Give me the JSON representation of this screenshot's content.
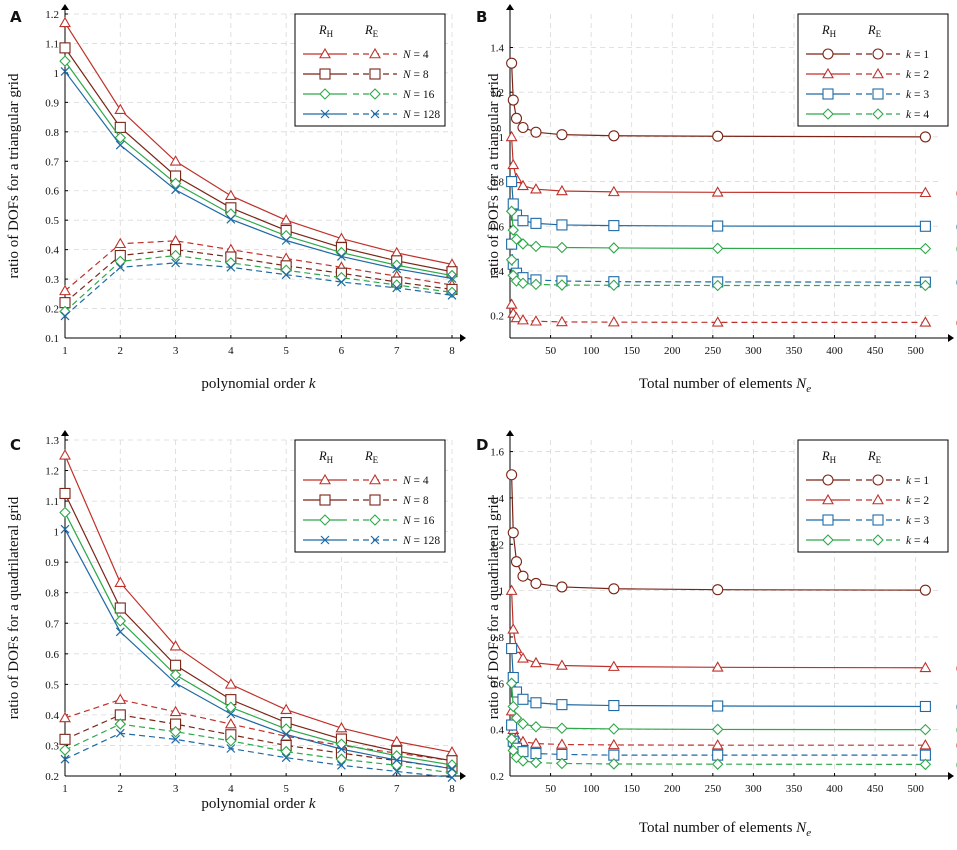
{
  "colors": {
    "red": "#c0312b",
    "darkred": "#7a2517",
    "green": "#2ea84a",
    "blue": "#1f6aa5",
    "grid": "#d9d9d9"
  },
  "legend_headers": {
    "h": "R",
    "h_sub": "H",
    "e": "R",
    "e_sub": "E"
  },
  "chart_data": [
    {
      "panel": "A",
      "type": "line",
      "ylabel": "ratio of DOFs for a triangular grid",
      "xlabel": "polynomial order k",
      "xlim": [
        1,
        8
      ],
      "ylim": [
        0.1,
        1.2
      ],
      "xticks": [
        "1",
        "2",
        "3",
        "4",
        "5",
        "6",
        "7",
        "8"
      ],
      "yticks": [
        "0.1",
        "0.2",
        "0.3",
        "0.4",
        "0.5",
        "0.6",
        "0.7",
        "0.8",
        "0.9",
        "1",
        "1.1",
        "1.2"
      ],
      "x": [
        1,
        2,
        3,
        4,
        5,
        6,
        7,
        8
      ],
      "legend_position": "top-right",
      "series": [
        {
          "name": "N = 4",
          "color": "red",
          "marker": "triangle",
          "RH": [
            1.17,
            0.875,
            0.7,
            0.583,
            0.5,
            0.4375,
            0.389,
            0.35
          ],
          "RE": [
            0.26,
            0.42,
            0.43,
            0.4,
            0.37,
            0.34,
            0.31,
            0.28
          ]
        },
        {
          "name": "N = 8",
          "color": "darkred",
          "marker": "square",
          "RH": [
            1.085,
            0.815,
            0.65,
            0.542,
            0.465,
            0.407,
            0.362,
            0.325
          ],
          "RE": [
            0.22,
            0.38,
            0.4,
            0.375,
            0.345,
            0.32,
            0.29,
            0.265
          ]
        },
        {
          "name": "N = 16",
          "color": "green",
          "marker": "diamond",
          "RH": [
            1.04,
            0.78,
            0.625,
            0.521,
            0.447,
            0.39,
            0.347,
            0.312
          ],
          "RE": [
            0.19,
            0.36,
            0.38,
            0.355,
            0.33,
            0.305,
            0.28,
            0.255
          ]
        },
        {
          "name": "N = 128",
          "color": "blue",
          "marker": "x",
          "RH": [
            1.005,
            0.755,
            0.603,
            0.503,
            0.431,
            0.377,
            0.335,
            0.302
          ],
          "RE": [
            0.175,
            0.34,
            0.355,
            0.34,
            0.315,
            0.29,
            0.27,
            0.245
          ]
        }
      ]
    },
    {
      "panel": "B",
      "type": "line",
      "ylabel": "ratio of DOFs for a triangular grid",
      "xlabel": "Total number of elements N",
      "xlabel_sub": "e",
      "xlim": [
        0,
        530
      ],
      "ylim": [
        0.1,
        1.55
      ],
      "xticks": [
        "50",
        "100",
        "150",
        "200",
        "250",
        "300",
        "350",
        "400",
        "450",
        "500"
      ],
      "yticks": [
        "0.2",
        "0.4",
        "0.6",
        "0.8",
        "1",
        "1.2",
        "1.4"
      ],
      "x": [
        2,
        4,
        8,
        16,
        32,
        64,
        128,
        256,
        512
      ],
      "legend_position": "top-right",
      "series": [
        {
          "name": "k = 1",
          "color": "darkred",
          "marker": "circle",
          "RH": [
            1.33,
            1.165,
            1.083,
            1.042,
            1.021,
            1.01,
            1.005,
            1.003,
            1.0
          ],
          "RE": null,
          "asymptote": "1.00"
        },
        {
          "name": "k = 2",
          "color": "red",
          "marker": "triangle",
          "RH": [
            1.0,
            0.875,
            0.8125,
            0.781,
            0.766,
            0.758,
            0.754,
            0.752,
            0.75
          ],
          "RE": [
            0.25,
            0.21,
            0.19,
            0.18,
            0.175,
            0.172,
            0.171,
            0.17,
            0.17
          ],
          "asymptote": "0.75",
          "re_label": "0.17"
        },
        {
          "name": "k = 3",
          "color": "blue",
          "marker": "square",
          "RH": [
            0.8,
            0.7,
            0.65,
            0.625,
            0.613,
            0.606,
            0.603,
            0.601,
            0.6
          ],
          "RE": [
            0.52,
            0.43,
            0.39,
            0.37,
            0.36,
            0.355,
            0.352,
            0.351,
            0.35
          ],
          "asymptote": "0.60",
          "re_label": "0.35"
        },
        {
          "name": "k = 4",
          "color": "green",
          "marker": "diamond",
          "RH": [
            0.667,
            0.583,
            0.542,
            0.521,
            0.51,
            0.505,
            0.503,
            0.501,
            0.5
          ],
          "RE": [
            0.45,
            0.38,
            0.355,
            0.345,
            0.34,
            0.337,
            0.336,
            0.335,
            0.335
          ],
          "asymptote": "0.50"
        }
      ]
    },
    {
      "panel": "C",
      "type": "line",
      "ylabel": "ratio of DOFs for a quadrilateral grid",
      "xlabel": "polynomial order k",
      "xlim": [
        1,
        8
      ],
      "ylim": [
        0.2,
        1.3
      ],
      "xticks": [
        "1",
        "2",
        "3",
        "4",
        "5",
        "6",
        "7",
        "8"
      ],
      "yticks": [
        "0.2",
        "0.3",
        "0.4",
        "0.5",
        "0.6",
        "0.7",
        "0.8",
        "0.9",
        "1",
        "1.1",
        "1.2",
        "1.3"
      ],
      "x": [
        1,
        2,
        3,
        4,
        5,
        6,
        7,
        8
      ],
      "legend_position": "top-right",
      "series": [
        {
          "name": "N = 4",
          "color": "red",
          "marker": "triangle",
          "RH": [
            1.25,
            0.833,
            0.625,
            0.5,
            0.417,
            0.357,
            0.3125,
            0.278
          ],
          "RE": [
            0.39,
            0.45,
            0.41,
            0.37,
            0.33,
            0.3,
            0.275,
            0.25
          ]
        },
        {
          "name": "N = 8",
          "color": "darkred",
          "marker": "square",
          "RH": [
            1.125,
            0.75,
            0.5625,
            0.45,
            0.375,
            0.321,
            0.281,
            0.25
          ],
          "RE": [
            0.32,
            0.4,
            0.37,
            0.335,
            0.3,
            0.275,
            0.25,
            0.225
          ]
        },
        {
          "name": "N = 16",
          "color": "green",
          "marker": "diamond",
          "RH": [
            1.0625,
            0.708,
            0.531,
            0.425,
            0.354,
            0.304,
            0.266,
            0.236
          ],
          "RE": [
            0.285,
            0.37,
            0.345,
            0.315,
            0.28,
            0.255,
            0.235,
            0.21
          ]
        },
        {
          "name": "N = 128",
          "color": "blue",
          "marker": "x",
          "RH": [
            1.008,
            0.672,
            0.504,
            0.403,
            0.336,
            0.288,
            0.252,
            0.224
          ],
          "RE": [
            0.255,
            0.34,
            0.32,
            0.29,
            0.26,
            0.235,
            0.215,
            0.195
          ]
        }
      ]
    },
    {
      "panel": "D",
      "type": "line",
      "ylabel": "ratio of DOFs for a quadrilateral grid",
      "xlabel": "Total number of elements N",
      "xlabel_sub": "e",
      "xlim": [
        0,
        530
      ],
      "ylim": [
        0.2,
        1.65
      ],
      "xticks": [
        "50",
        "100",
        "150",
        "200",
        "250",
        "300",
        "350",
        "400",
        "450",
        "500"
      ],
      "yticks": [
        "0.2",
        "0.4",
        "0.6",
        "0.8",
        "1",
        "1.2",
        "1.4",
        "1.6"
      ],
      "x": [
        2,
        4,
        8,
        16,
        32,
        64,
        128,
        256,
        512
      ],
      "legend_position": "top-right",
      "series": [
        {
          "name": "k = 1",
          "color": "darkred",
          "marker": "circle",
          "RH": [
            1.5,
            1.25,
            1.125,
            1.0625,
            1.031,
            1.016,
            1.008,
            1.004,
            1.002
          ],
          "RE": null,
          "asymptote": "1.00"
        },
        {
          "name": "k = 2",
          "color": "red",
          "marker": "triangle",
          "RH": [
            1.0,
            0.833,
            0.75,
            0.708,
            0.688,
            0.677,
            0.672,
            0.669,
            0.667
          ],
          "RE": [
            0.48,
            0.4,
            0.365,
            0.348,
            0.34,
            0.336,
            0.334,
            0.333,
            0.333
          ],
          "asymptote": "0.67",
          "re_label": "0.33"
        },
        {
          "name": "k = 3",
          "color": "blue",
          "marker": "square",
          "RH": [
            0.75,
            0.625,
            0.5625,
            0.531,
            0.516,
            0.508,
            0.504,
            0.502,
            0.5
          ],
          "RE": [
            0.42,
            0.35,
            0.32,
            0.305,
            0.297,
            0.293,
            0.29,
            0.29,
            0.29
          ],
          "asymptote": "0.50"
        },
        {
          "name": "k = 4",
          "color": "green",
          "marker": "diamond",
          "RH": [
            0.6,
            0.5,
            0.45,
            0.425,
            0.4125,
            0.406,
            0.403,
            0.401,
            0.4
          ],
          "RE": [
            0.36,
            0.31,
            0.28,
            0.265,
            0.258,
            0.254,
            0.252,
            0.251,
            0.25
          ],
          "asymptote": "0.40",
          "re_label": "0.25"
        }
      ]
    }
  ]
}
